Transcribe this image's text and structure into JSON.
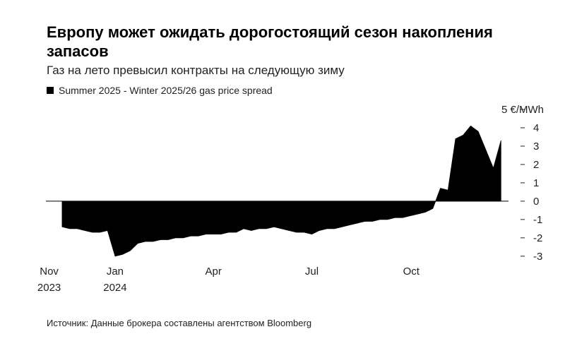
{
  "chart_data": {
    "type": "area",
    "title": "Европу может ожидать дорогостоящий сезон накопления запасов",
    "subtitle": "Газ на лето превысил контракты на следующую зиму",
    "source": "Источник: Данные брокера составлены агентством Bloomberg",
    "x": [
      "2023-11-13",
      "2023-11-20",
      "2023-11-27",
      "2023-12-04",
      "2023-12-11",
      "2023-12-18",
      "2023-12-25",
      "2024-01-01",
      "2024-01-08",
      "2024-01-15",
      "2024-01-22",
      "2024-01-29",
      "2024-02-05",
      "2024-02-12",
      "2024-02-19",
      "2024-02-26",
      "2024-03-04",
      "2024-03-11",
      "2024-03-18",
      "2024-03-25",
      "2024-04-01",
      "2024-04-08",
      "2024-04-15",
      "2024-04-22",
      "2024-04-29",
      "2024-05-06",
      "2024-05-13",
      "2024-05-20",
      "2024-05-27",
      "2024-06-03",
      "2024-06-10",
      "2024-06-17",
      "2024-06-24",
      "2024-07-01",
      "2024-07-08",
      "2024-07-15",
      "2024-07-22",
      "2024-07-29",
      "2024-08-05",
      "2024-08-12",
      "2024-08-19",
      "2024-08-26",
      "2024-09-02",
      "2024-09-09",
      "2024-09-16",
      "2024-09-23",
      "2024-09-30",
      "2024-10-07",
      "2024-10-14",
      "2024-10-21",
      "2024-10-28",
      "2024-11-04",
      "2024-11-11",
      "2024-11-18",
      "2024-11-25",
      "2024-12-02",
      "2024-12-09",
      "2024-12-16",
      "2024-12-23"
    ],
    "series": [
      {
        "name": "Summer 2025 - Winter 2025/26 gas price spread",
        "color": "#000000",
        "values": [
          -1.4,
          -1.5,
          -1.5,
          -1.6,
          -1.7,
          -1.7,
          -1.6,
          -3.0,
          -2.9,
          -2.7,
          -2.3,
          -2.2,
          -2.2,
          -2.1,
          -2.1,
          -2.0,
          -2.0,
          -1.9,
          -1.9,
          -1.8,
          -1.8,
          -1.8,
          -1.7,
          -1.7,
          -1.5,
          -1.6,
          -1.5,
          -1.5,
          -1.4,
          -1.5,
          -1.6,
          -1.7,
          -1.7,
          -1.8,
          -1.6,
          -1.5,
          -1.5,
          -1.4,
          -1.3,
          -1.2,
          -1.1,
          -1.1,
          -1.0,
          -1.0,
          -0.9,
          -0.9,
          -0.8,
          -0.7,
          -0.6,
          -0.4,
          0.7,
          0.6,
          3.4,
          3.6,
          4.1,
          3.8,
          2.8,
          1.8,
          3.3
        ]
      }
    ],
    "xlim": [
      "2023-10-29",
      "2024-12-30"
    ],
    "xticks": [
      {
        "value": "2023-11-01",
        "label": "Nov",
        "year": "2023"
      },
      {
        "value": "2024-01-01",
        "label": "Jan",
        "year": "2024"
      },
      {
        "value": "2024-04-01",
        "label": "Apr"
      },
      {
        "value": "2024-07-01",
        "label": "Jul"
      },
      {
        "value": "2024-10-01",
        "label": "Oct"
      }
    ],
    "ylim": [
      -3.2,
      5
    ],
    "yticks": [
      -3,
      -2,
      -1,
      0,
      1,
      2,
      3,
      4,
      {
        "value": 5,
        "label": "5 €/MWh"
      }
    ],
    "zero_line": true
  }
}
